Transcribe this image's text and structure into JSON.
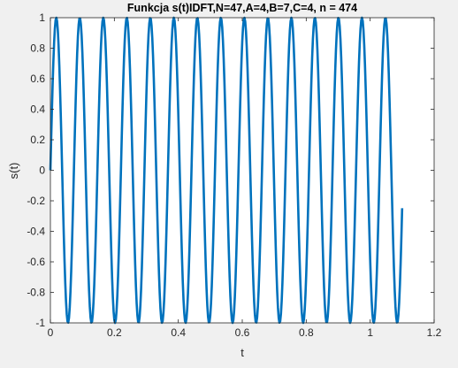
{
  "chart_data": {
    "type": "line",
    "title": "Funkcja s(t)IDFT,N=47,A=4,B=7,C=4, n = 474",
    "xlabel": "t",
    "ylabel": "s(t)",
    "xlim": [
      0,
      1.2
    ],
    "ylim": [
      -1,
      1
    ],
    "xticks": [
      "0",
      "0.2",
      "0.4",
      "0.6",
      "0.8",
      "1",
      "1.2"
    ],
    "yticks": [
      "1",
      "0.8",
      "0.6",
      "0.4",
      "0.2",
      "0",
      "-0.2",
      "-0.4",
      "-0.6",
      "-0.8",
      "-1"
    ],
    "grid": false,
    "series": [
      {
        "color": "#0072bd",
        "function": "sin(2*pi*f*t)",
        "f": 13.6,
        "t_start": 0,
        "t_end": 1.1,
        "samples": 474
      }
    ]
  }
}
